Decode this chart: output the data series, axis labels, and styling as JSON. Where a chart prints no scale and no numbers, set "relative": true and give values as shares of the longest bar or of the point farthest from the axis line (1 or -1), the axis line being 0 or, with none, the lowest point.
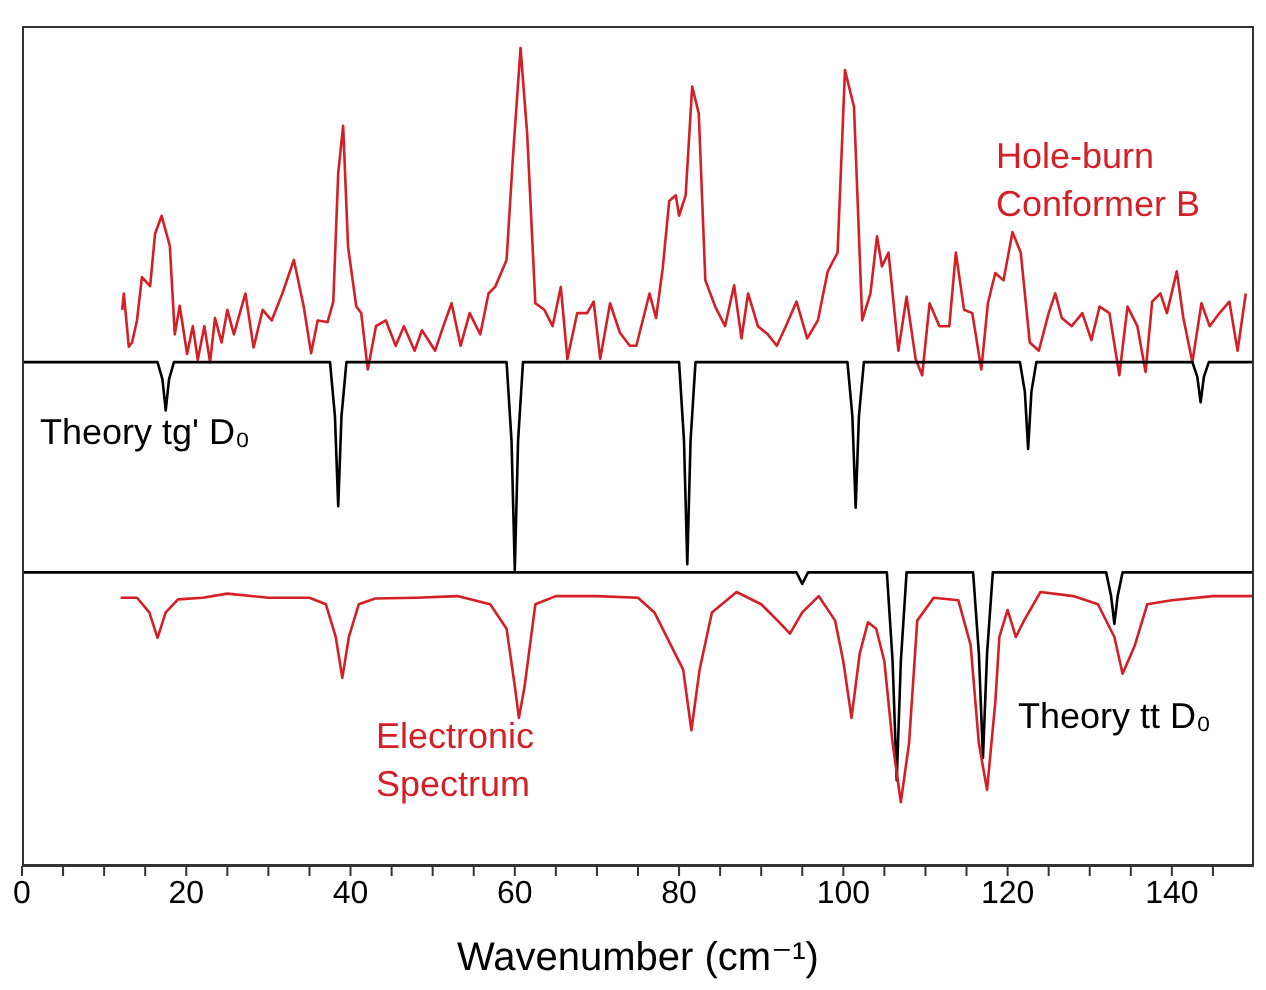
{
  "chart_data": {
    "type": "line",
    "relative": true,
    "xlabel": "Wavenumber (cm⁻¹)",
    "xlim": [
      0,
      150
    ],
    "xticks": [
      0,
      {
        "value": 5,
        "label": null
      },
      {
        "value": 10,
        "label": null
      },
      {
        "value": 15,
        "label": null
      },
      20,
      {
        "value": 25,
        "label": null
      },
      {
        "value": 30,
        "label": null
      },
      {
        "value": 35,
        "label": null
      },
      40,
      {
        "value": 45,
        "label": null
      },
      {
        "value": 50,
        "label": null
      },
      {
        "value": 55,
        "label": null
      },
      60,
      {
        "value": 65,
        "label": null
      },
      {
        "value": 70,
        "label": null
      },
      {
        "value": 75,
        "label": null
      },
      80,
      {
        "value": 85,
        "label": null
      },
      {
        "value": 90,
        "label": null
      },
      {
        "value": 95,
        "label": null
      },
      100,
      {
        "value": 105,
        "label": null
      },
      {
        "value": 110,
        "label": null
      },
      {
        "value": 115,
        "label": null
      },
      120,
      {
        "value": 125,
        "label": null
      },
      {
        "value": 130,
        "label": null
      },
      {
        "value": 135,
        "label": null
      },
      140,
      {
        "value": 145,
        "label": null
      }
    ],
    "series": [
      {
        "name": "Hole-burn Conformer B",
        "color": "#d51f26",
        "x": [
          12.2,
          12.4,
          13.0,
          13.4,
          14.0,
          14.6,
          15.6,
          16.2,
          17.0,
          18.0,
          18.6,
          19.2,
          20.1,
          20.8,
          21.4,
          22.2,
          22.9,
          23.5,
          24.3,
          25.0,
          25.8,
          27.2,
          28.2,
          29.3,
          30.4,
          31.7,
          33.1,
          34.3,
          35.2,
          36.0,
          37.2,
          37.9,
          38.5,
          39.1,
          39.7,
          40.7,
          41.3,
          42.1,
          43.1,
          44.3,
          45.5,
          46.5,
          47.8,
          48.7,
          50.3,
          51.3,
          52.3,
          53.4,
          54.5,
          55.8,
          56.8,
          57.6,
          59.0,
          59.8,
          60.7,
          61.5,
          62.5,
          63.6,
          64.6,
          65.6,
          66.4,
          67.6,
          68.8,
          69.6,
          70.4,
          71.6,
          72.8,
          74.0,
          74.8,
          76.4,
          77.2,
          78.0,
          78.8,
          79.6,
          80.0,
          80.8,
          81.6,
          82.4,
          83.2,
          84.4,
          85.6,
          86.7,
          87.6,
          88.4,
          89.6,
          90.8,
          91.9,
          93.0,
          94.3,
          95.6,
          96.9,
          98.1,
          99.3,
          100.2,
          101.3,
          102.3,
          103.3,
          104.1,
          104.7,
          105.5,
          106.7,
          107.7,
          108.8,
          109.6,
          110.5,
          111.7,
          112.9,
          113.7,
          114.7,
          115.7,
          116.8,
          117.6,
          118.5,
          119.5,
          120.6,
          121.6,
          122.7,
          123.8,
          125.0,
          125.8,
          126.6,
          127.8,
          129.1,
          130.2,
          131.2,
          132.4,
          133.6,
          134.6,
          135.8,
          136.8,
          137.6,
          138.6,
          139.4,
          140.6,
          141.4,
          142.5,
          143.6,
          144.6,
          145.8,
          147.0,
          148.0,
          149.0
        ],
        "values": [
          0.68,
          0.7,
          0.635,
          0.64,
          0.667,
          0.72,
          0.709,
          0.773,
          0.795,
          0.758,
          0.65,
          0.685,
          0.626,
          0.66,
          0.619,
          0.66,
          0.616,
          0.67,
          0.64,
          0.68,
          0.65,
          0.7,
          0.634,
          0.68,
          0.667,
          0.7,
          0.741,
          0.684,
          0.627,
          0.667,
          0.665,
          0.69,
          0.847,
          0.905,
          0.757,
          0.684,
          0.676,
          0.607,
          0.66,
          0.667,
          0.636,
          0.66,
          0.63,
          0.655,
          0.63,
          0.66,
          0.688,
          0.636,
          0.676,
          0.65,
          0.7,
          0.708,
          0.741,
          0.871,
          1.0,
          0.896,
          0.688,
          0.68,
          0.66,
          0.708,
          0.62,
          0.676,
          0.676,
          0.69,
          0.62,
          0.688,
          0.652,
          0.636,
          0.636,
          0.7,
          0.67,
          0.73,
          0.813,
          0.82,
          0.795,
          0.82,
          0.953,
          0.92,
          0.716,
          0.684,
          0.66,
          0.71,
          0.645,
          0.7,
          0.66,
          0.65,
          0.636,
          0.66,
          0.69,
          0.645,
          0.667,
          0.727,
          0.75,
          0.973,
          0.928,
          0.667,
          0.7,
          0.77,
          0.733,
          0.75,
          0.63,
          0.696,
          0.62,
          0.6,
          0.688,
          0.66,
          0.66,
          0.75,
          0.68,
          0.676,
          0.607,
          0.688,
          0.725,
          0.716,
          0.775,
          0.75,
          0.64,
          0.63,
          0.676,
          0.7,
          0.67,
          0.66,
          0.676,
          0.643,
          0.684,
          0.676,
          0.6,
          0.684,
          0.66,
          0.604,
          0.69,
          0.7,
          0.676,
          0.727,
          0.67,
          0.616,
          0.688,
          0.66,
          0.676,
          0.69,
          0.63,
          0.7
        ]
      },
      {
        "name": "Theory tg' D₀",
        "color": "#000000",
        "x": [
          0,
          16.5,
          17.1,
          17.5,
          17.9,
          18.5,
          37.5,
          38.1,
          38.5,
          38.9,
          39.5,
          59,
          59.6,
          60,
          60.4,
          61,
          80,
          80.6,
          81,
          81.4,
          82,
          100.5,
          101.1,
          101.5,
          101.9,
          102.5,
          121.5,
          122.1,
          122.5,
          122.9,
          123.5,
          142.5,
          143.1,
          143.5,
          143.9,
          144.5,
          150
        ],
        "values": [
          0.616,
          0.616,
          0.595,
          0.557,
          0.595,
          0.616,
          0.616,
          0.55,
          0.44,
          0.55,
          0.616,
          0.616,
          0.52,
          0.362,
          0.52,
          0.616,
          0.616,
          0.52,
          0.369,
          0.52,
          0.616,
          0.616,
          0.55,
          0.438,
          0.55,
          0.616,
          0.616,
          0.58,
          0.51,
          0.58,
          0.616,
          0.616,
          0.598,
          0.567,
          0.598,
          0.616,
          0.616
        ]
      },
      {
        "name": "Theory tt D₀",
        "color": "#000000",
        "x": [
          0,
          94.3,
          95,
          95.7,
          105.3,
          106,
          106.5,
          107,
          107.7,
          115.8,
          116.5,
          117,
          117.5,
          118.2,
          132,
          132.6,
          133,
          133.4,
          134,
          150
        ],
        "values": [
          0.359,
          0.359,
          0.345,
          0.359,
          0.359,
          0.25,
          0.105,
          0.25,
          0.359,
          0.359,
          0.26,
          0.132,
          0.26,
          0.359,
          0.359,
          0.33,
          0.296,
          0.33,
          0.359,
          0.359
        ]
      },
      {
        "name": "Electronic Spectrum",
        "color": "#d51f26",
        "x": [
          12,
          14,
          15.5,
          16.5,
          17.5,
          19,
          22,
          25,
          30,
          35,
          37,
          38.2,
          39,
          39.8,
          41,
          43,
          48,
          53,
          57,
          59,
          60,
          60.5,
          61.2,
          62.5,
          65,
          70,
          75,
          77,
          79,
          80.5,
          81.5,
          82.5,
          84,
          87,
          90,
          92,
          93.5,
          95,
          97,
          99,
          100,
          101,
          102,
          103,
          104,
          105,
          106,
          107,
          108,
          109,
          111,
          114,
          115.5,
          116.5,
          117.5,
          118.5,
          119,
          120,
          121,
          122,
          124,
          128,
          131,
          133,
          134,
          135.5,
          137,
          140,
          145,
          150
        ],
        "values": [
          0.328,
          0.328,
          0.31,
          0.279,
          0.31,
          0.326,
          0.328,
          0.333,
          0.328,
          0.328,
          0.32,
          0.28,
          0.23,
          0.28,
          0.32,
          0.327,
          0.328,
          0.33,
          0.32,
          0.29,
          0.22,
          0.181,
          0.22,
          0.32,
          0.33,
          0.33,
          0.328,
          0.31,
          0.27,
          0.24,
          0.166,
          0.24,
          0.31,
          0.335,
          0.32,
          0.3,
          0.284,
          0.31,
          0.33,
          0.3,
          0.25,
          0.181,
          0.26,
          0.298,
          0.29,
          0.25,
          0.15,
          0.078,
          0.15,
          0.3,
          0.328,
          0.325,
          0.27,
          0.15,
          0.093,
          0.2,
          0.28,
          0.313,
          0.28,
          0.3,
          0.335,
          0.33,
          0.32,
          0.28,
          0.235,
          0.27,
          0.32,
          0.325,
          0.33,
          0.33
        ]
      }
    ]
  }
}
